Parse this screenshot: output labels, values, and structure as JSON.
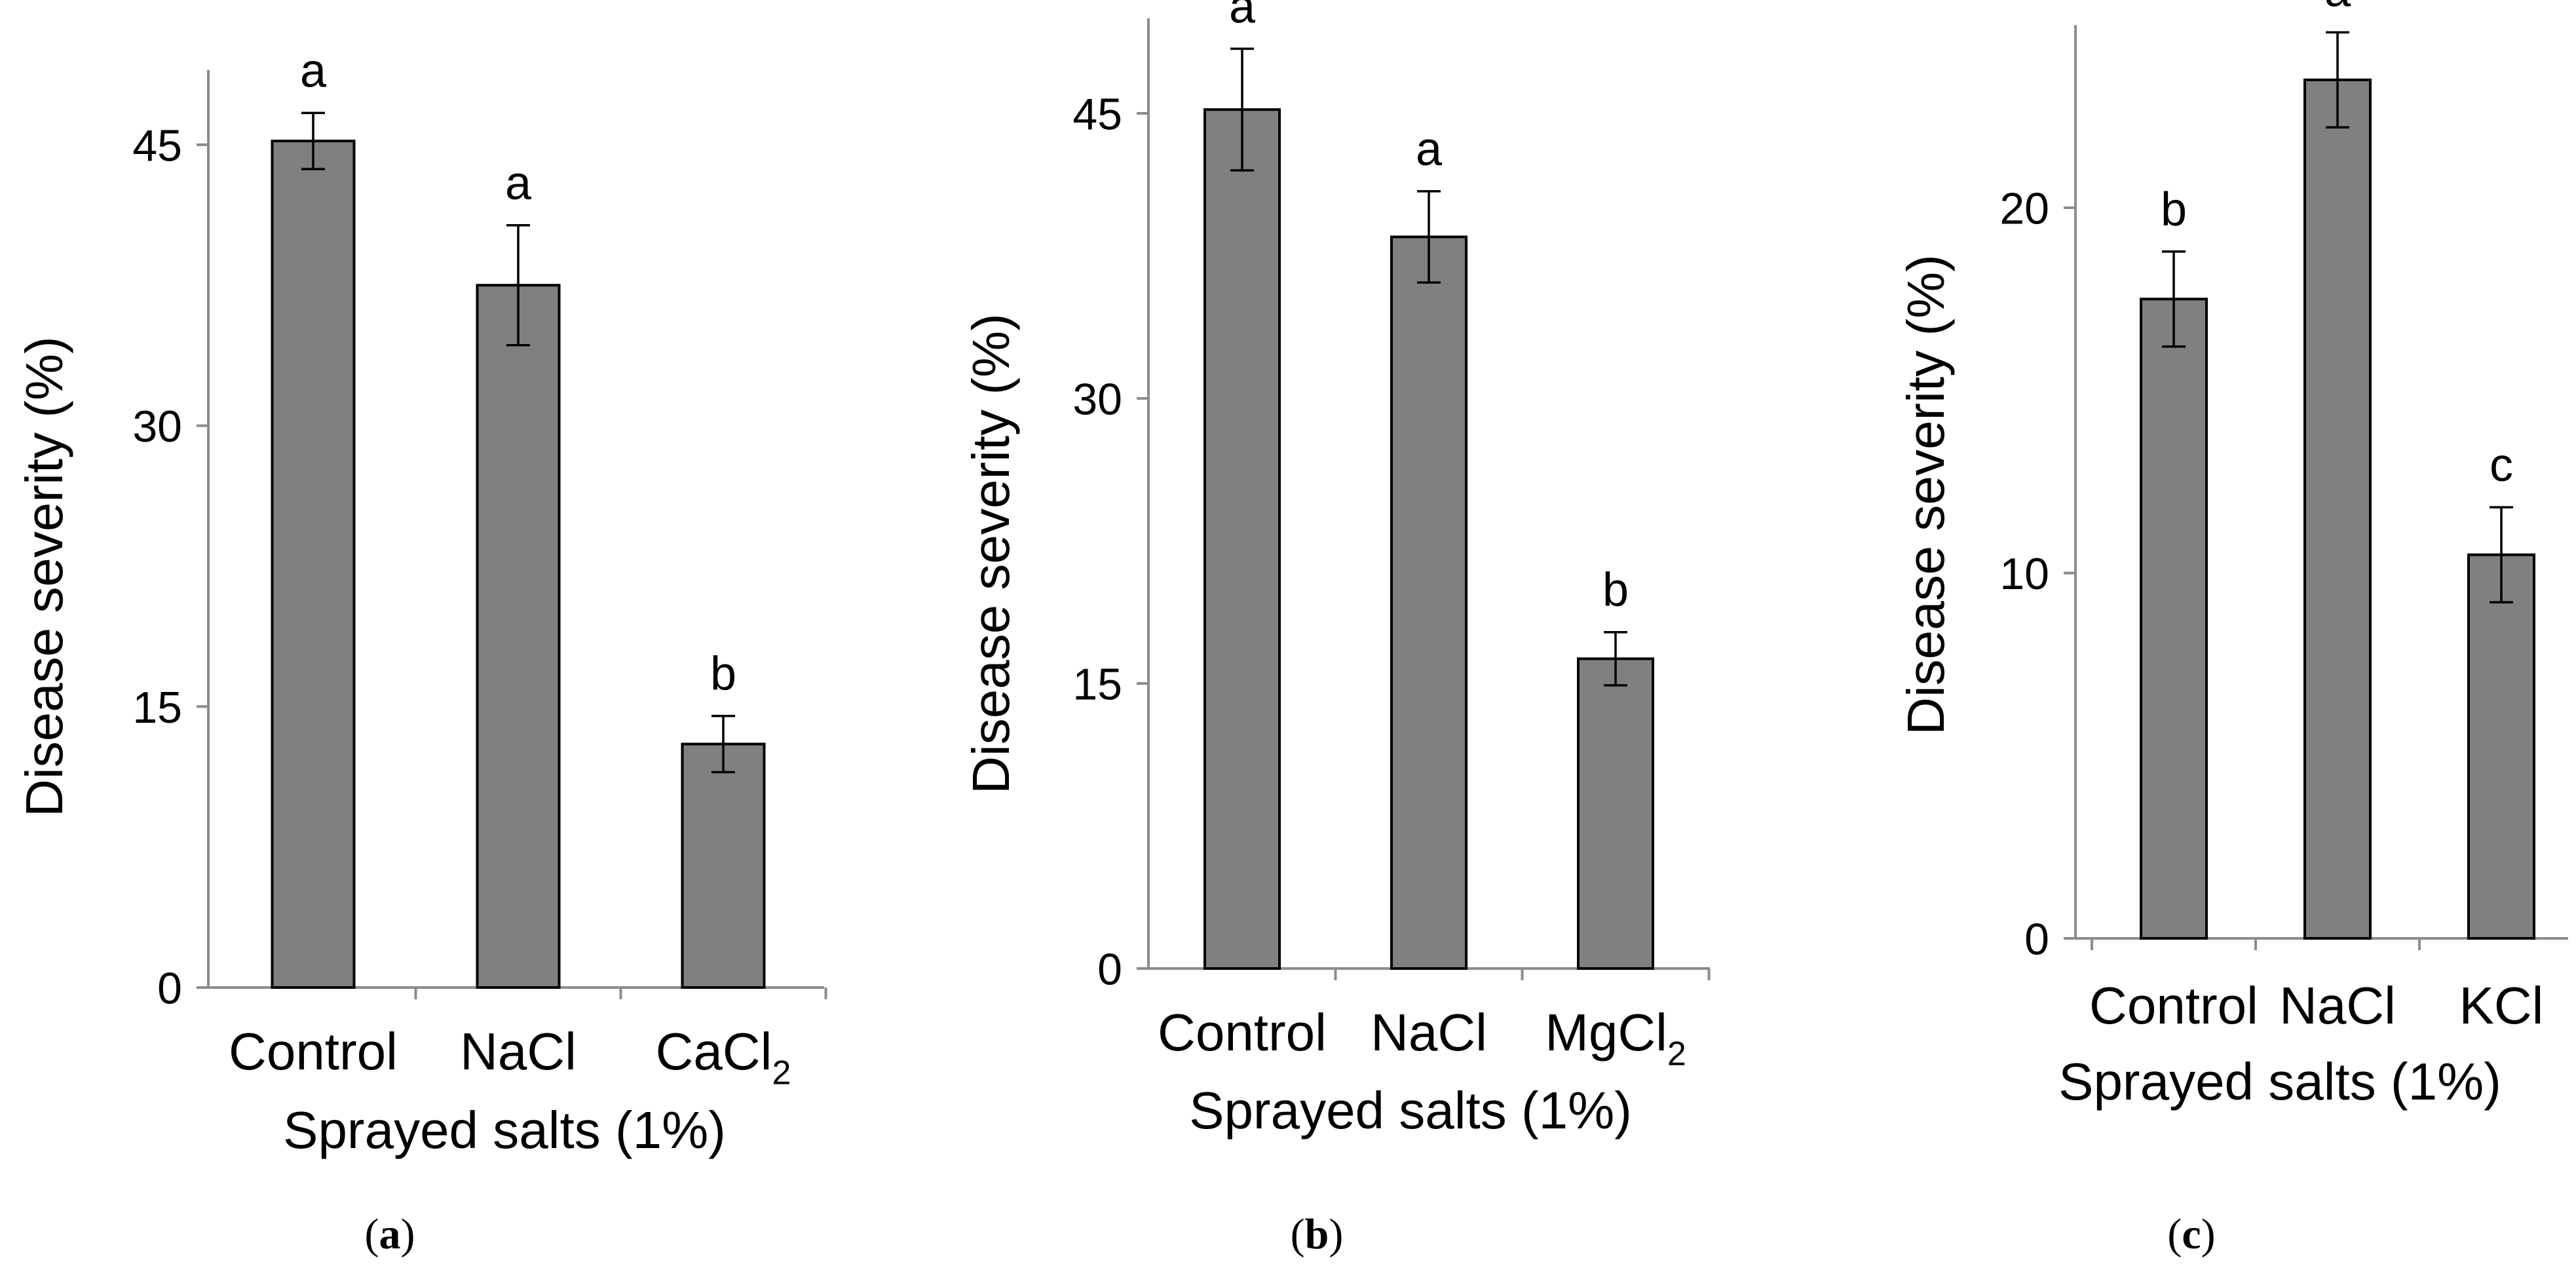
{
  "colors": {
    "bar": "#808080",
    "bar_edge": "#000000",
    "axis": "#8c8c8c",
    "text": "#000000",
    "background": "#ffffff"
  },
  "chart_data": [
    {
      "type": "bar",
      "panel_label": "(a)",
      "categories": [
        "Control",
        "NaCl",
        "CaCl"
      ],
      "category_subscripts": [
        "",
        "",
        "2"
      ],
      "values": [
        45.2,
        37.5,
        13.0
      ],
      "errors": [
        1.5,
        3.2,
        1.5
      ],
      "significance": [
        "a",
        "a",
        "b"
      ],
      "yticks": [
        0,
        15,
        30,
        45
      ],
      "ylim": [
        0,
        49
      ],
      "xlabel": "Sprayed salts (1%)",
      "ylabel": "Disease severity (%)"
    },
    {
      "type": "bar",
      "panel_label": "(b)",
      "categories": [
        "Control",
        "NaCl",
        "MgCl"
      ],
      "category_subscripts": [
        "",
        "",
        "2"
      ],
      "values": [
        45.2,
        38.5,
        16.3
      ],
      "errors": [
        3.2,
        2.4,
        1.4
      ],
      "significance": [
        "a",
        "a",
        "b"
      ],
      "yticks": [
        0,
        15,
        30,
        45
      ],
      "ylim": [
        0,
        50
      ],
      "xlabel": "Sprayed salts (1%)",
      "ylabel": "Disease severity (%)"
    },
    {
      "type": "bar",
      "panel_label": "(c)",
      "categories": [
        "Control",
        "NaCl",
        "KCl"
      ],
      "category_subscripts": [
        "",
        "",
        ""
      ],
      "values": [
        17.5,
        23.5,
        10.5
      ],
      "errors": [
        1.3,
        1.3,
        1.3
      ],
      "significance": [
        "b",
        "a",
        "c"
      ],
      "yticks": [
        0,
        10,
        20
      ],
      "ylim": [
        0,
        25
      ],
      "xlabel": "Sprayed salts (1%)",
      "ylabel": "Disease severity (%)"
    }
  ]
}
